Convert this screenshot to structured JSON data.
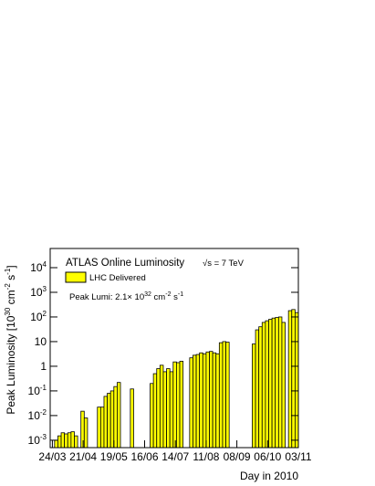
{
  "chart_data": {
    "type": "bar",
    "title": "ATLAS Online Luminosity",
    "energy": "√s = 7 TeV",
    "peak_lumi": [
      "Peak Lumi: 2.1× 10",
      "32",
      " cm",
      "-2",
      " s",
      "-1"
    ],
    "ylabel": [
      "Peak Luminosity [10",
      "30",
      " cm",
      "-2",
      " s",
      "-1",
      "]"
    ],
    "xlabel": "Day in 2010",
    "log_y": true,
    "x": [
      "2010-03-26",
      "2010-03-29",
      "2010-04-01",
      "2010-04-04",
      "2010-04-07",
      "2010-04-10",
      "2010-04-13",
      "2010-04-16",
      "2010-04-19",
      "2010-04-22",
      "2010-04-25",
      "2010-04-28",
      "2010-05-01",
      "2010-05-04",
      "2010-05-07",
      "2010-05-10",
      "2010-05-13",
      "2010-05-16",
      "2010-05-19",
      "2010-05-22",
      "2010-05-25",
      "2010-05-28",
      "2010-05-31",
      "2010-06-03",
      "2010-06-06",
      "2010-06-09",
      "2010-06-12",
      "2010-06-15",
      "2010-06-18",
      "2010-06-21",
      "2010-06-24",
      "2010-06-27",
      "2010-06-30",
      "2010-07-03",
      "2010-07-06",
      "2010-07-09",
      "2010-07-12",
      "2010-07-15",
      "2010-07-18",
      "2010-07-21",
      "2010-07-24",
      "2010-07-27",
      "2010-07-30",
      "2010-08-02",
      "2010-08-05",
      "2010-08-08",
      "2010-08-11",
      "2010-08-14",
      "2010-08-17",
      "2010-08-20",
      "2010-08-23",
      "2010-08-26",
      "2010-08-29",
      "2010-09-01",
      "2010-09-04",
      "2010-09-07",
      "2010-09-10",
      "2010-09-13",
      "2010-09-16",
      "2010-09-19",
      "2010-09-22",
      "2010-09-25",
      "2010-09-28",
      "2010-10-01",
      "2010-10-04",
      "2010-10-07",
      "2010-10-10",
      "2010-10-13",
      "2010-10-16",
      "2010-10-19",
      "2010-10-22",
      "2010-10-25",
      "2010-10-28",
      "2010-10-31"
    ],
    "series": [
      {
        "name": "LHC Delivered",
        "color": "#ffff00",
        "values": [
          0.001,
          0.0015,
          0.002,
          0.0018,
          0.002,
          0.0022,
          0.0015,
          null,
          0.015,
          0.008,
          null,
          null,
          null,
          0.022,
          0.022,
          0.06,
          0.08,
          0.1,
          0.15,
          0.22,
          null,
          null,
          null,
          0.12,
          null,
          null,
          null,
          null,
          null,
          0.2,
          0.5,
          0.8,
          1.1,
          0.6,
          0.8,
          0.6,
          1.5,
          1.4,
          1.6,
          null,
          null,
          2.2,
          2.8,
          3,
          3.5,
          3.2,
          3.8,
          4,
          3.5,
          3.2,
          9,
          10,
          9.5,
          null,
          null,
          null,
          null,
          null,
          null,
          null,
          8,
          30,
          40,
          60,
          70,
          80,
          90,
          95,
          100,
          60,
          null,
          180,
          200,
          150
        ]
      }
    ],
    "xlim": [
      "2010-03-22",
      "2010-11-03"
    ],
    "xticks": [
      {
        "value": "2010-03-24",
        "label": "24/03"
      },
      {
        "value": "2010-04-21",
        "label": "21/04"
      },
      {
        "value": "2010-05-19",
        "label": "19/05"
      },
      {
        "value": "2010-06-16",
        "label": "16/06"
      },
      {
        "value": "2010-07-14",
        "label": "14/07"
      },
      {
        "value": "2010-08-11",
        "label": "11/08"
      },
      {
        "value": "2010-09-08",
        "label": "08/09"
      },
      {
        "value": "2010-10-06",
        "label": "06/10"
      },
      {
        "value": "2010-11-03",
        "label": "03/11"
      }
    ],
    "ylim": [
      0.0005,
      60000
    ],
    "yticks": [
      {
        "value": 0.001,
        "label": "10",
        "sup": "-3"
      },
      {
        "value": 0.01,
        "label": "10",
        "sup": "-2"
      },
      {
        "value": 0.1,
        "label": "10",
        "sup": "-1"
      },
      1,
      10,
      {
        "value": 100,
        "label": "10",
        "sup": "2"
      },
      {
        "value": 1000,
        "label": "10",
        "sup": "3"
      },
      {
        "value": 10000,
        "label": "10",
        "sup": "4"
      }
    ]
  }
}
